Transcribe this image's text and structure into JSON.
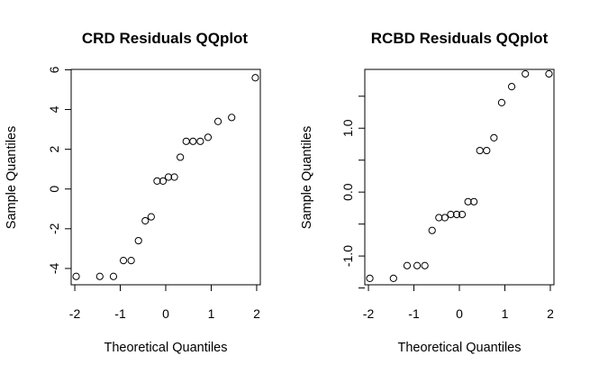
{
  "chart_data": [
    {
      "type": "scatter",
      "title": "CRD Residuals QQplot",
      "xlabel": "Theoretical Quantiles",
      "ylabel": "Sample Quantiles",
      "xlim": [
        -2.08,
        2.08
      ],
      "ylim": [
        -4.82,
        6.02
      ],
      "xticks": [
        -2,
        -1,
        0,
        1,
        2
      ],
      "xtick_labels": [
        "-2",
        "-1",
        "0",
        "1",
        "2"
      ],
      "yticks": [
        -4,
        -2,
        0,
        2,
        4,
        6
      ],
      "ytick_labels": [
        "-4",
        "-2",
        "0",
        "2",
        "4",
        "6"
      ],
      "grid": false,
      "x": [
        -1.97,
        -1.45,
        -1.15,
        -0.93,
        -0.76,
        -0.6,
        -0.45,
        -0.32,
        -0.19,
        -0.06,
        0.06,
        0.19,
        0.32,
        0.45,
        0.6,
        0.76,
        0.93,
        1.15,
        1.45,
        1.97
      ],
      "y": [
        -4.4,
        -4.4,
        -4.4,
        -3.6,
        -3.6,
        -2.6,
        -1.6,
        -1.4,
        0.4,
        0.4,
        0.6,
        0.6,
        1.6,
        2.4,
        2.4,
        2.4,
        2.6,
        3.4,
        3.6,
        5.6
      ]
    },
    {
      "type": "scatter",
      "title": "RCBD Residuals QQplot",
      "xlabel": "Theoretical Quantiles",
      "ylabel": "Sample Quantiles",
      "xlim": [
        -2.08,
        2.08
      ],
      "ylim": [
        -1.45,
        1.92
      ],
      "xticks": [
        -2,
        -1,
        0,
        1,
        2
      ],
      "xtick_labels": [
        "-2",
        "-1",
        "0",
        "1",
        "2"
      ],
      "yticks": [
        -1.5,
        -1.0,
        -0.5,
        0.0,
        0.5,
        1.0,
        1.5
      ],
      "ytick_labels": [
        "",
        "-1.0",
        "",
        "0.0",
        "",
        "1.0",
        ""
      ],
      "grid": false,
      "x": [
        -1.97,
        -1.45,
        -1.15,
        -0.93,
        -0.76,
        -0.6,
        -0.45,
        -0.32,
        -0.19,
        -0.06,
        0.06,
        0.19,
        0.32,
        0.45,
        0.6,
        0.76,
        0.93,
        1.15,
        1.45,
        1.97
      ],
      "y": [
        -1.35,
        -1.35,
        -1.15,
        -1.15,
        -1.15,
        -0.6,
        -0.4,
        -0.4,
        -0.35,
        -0.35,
        -0.35,
        -0.15,
        -0.15,
        0.65,
        0.65,
        0.85,
        1.4,
        1.65,
        1.85,
        1.85
      ]
    }
  ]
}
